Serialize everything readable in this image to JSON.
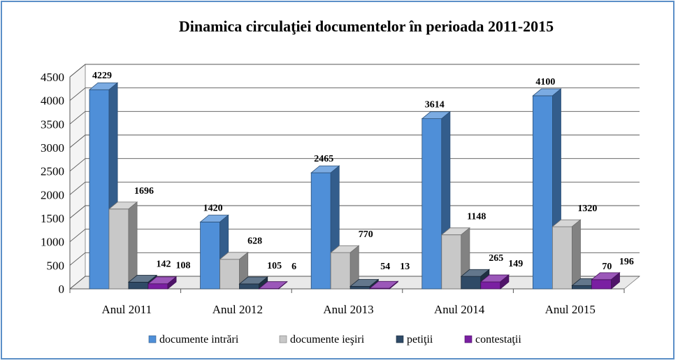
{
  "chart_data": {
    "type": "bar",
    "title": "Dinamica circulaţiei documentelor în perioada 2011-2015",
    "categories": [
      "Anul 2011",
      "Anul 2012",
      "Anul 2013",
      "Anul 2014",
      "Anul 2015"
    ],
    "series": [
      {
        "name": "documente intrări",
        "values": [
          4229,
          1420,
          2465,
          3614,
          4100
        ],
        "color": "#4f8fd8"
      },
      {
        "name": "documente ieşiri",
        "values": [
          1696,
          628,
          770,
          1148,
          1320
        ],
        "color": "#c8c8c8"
      },
      {
        "name": "petiţii",
        "values": [
          142,
          105,
          54,
          265,
          70
        ],
        "color": "#2f4a66"
      },
      {
        "name": "contestaţii",
        "values": [
          108,
          6,
          13,
          149,
          196
        ],
        "color": "#7a1fa2"
      }
    ],
    "yticks": [
      "0",
      "500",
      "1000",
      "1500",
      "2000",
      "2500",
      "3000",
      "3500",
      "4000",
      "4500"
    ],
    "ylim": [
      0,
      4500
    ],
    "grid": true,
    "legend_position": "bottom",
    "style": "3d-clustered-bar"
  }
}
